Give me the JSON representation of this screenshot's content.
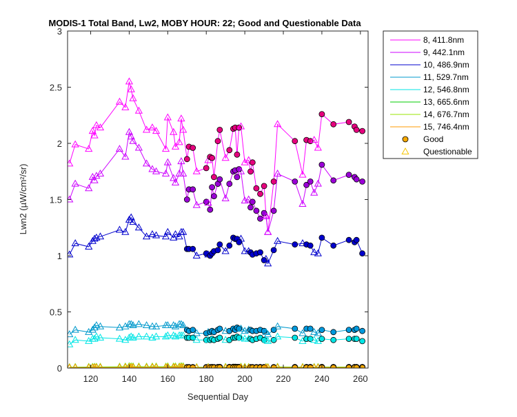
{
  "chart_data": {
    "type": "scatter",
    "title": "MODIS-1 Total Band, Lw2, MOBY HOUR: 22;  Good and Questionable Data",
    "xlabel": "Sequential Day",
    "ylabel": "Lwn2 (µW/cm²/sr)",
    "xlim": [
      108,
      264
    ],
    "ylim": [
      0,
      3
    ],
    "xticks": [
      120,
      140,
      160,
      180,
      200,
      220,
      240,
      260
    ],
    "yticks": [
      0,
      0.5,
      1,
      1.5,
      2,
      2.5,
      3
    ],
    "xtick_labels": [
      "120",
      "140",
      "160",
      "180",
      "200",
      "220",
      "240",
      "260"
    ],
    "ytick_labels": [
      "0",
      "0.5",
      "1",
      "1.5",
      "2",
      "2.5",
      "3"
    ],
    "grid": false,
    "legend_position": "outside-top-right",
    "x": [
      109,
      112,
      119,
      121,
      122,
      123,
      125,
      135,
      138,
      140,
      141,
      142,
      145,
      149,
      152,
      154,
      159,
      160,
      163,
      164,
      166,
      167,
      168,
      170,
      171,
      173,
      175,
      180,
      181,
      182,
      183,
      184,
      186,
      187,
      190,
      192,
      194,
      195,
      196,
      197,
      198,
      200,
      202,
      203,
      204,
      206,
      208,
      210,
      211,
      212,
      215,
      217,
      226,
      230,
      232,
      234,
      236,
      238,
      240,
      246,
      254,
      257,
      258,
      261
    ],
    "quality": [
      "q",
      "q",
      "q",
      "q",
      "q",
      "q",
      "q",
      "q",
      "q",
      "q",
      "q",
      "q",
      "q",
      "q",
      "q",
      "q",
      "q",
      "q",
      "q",
      "q",
      "q",
      "q",
      "q",
      "g",
      "g",
      "g",
      "q",
      "g",
      "q",
      "g",
      "g",
      "g",
      "g",
      "g",
      "q",
      "g",
      "g",
      "g",
      "g",
      "g",
      "q",
      "q",
      "q",
      "g",
      "g",
      "g",
      "g",
      "g",
      "q",
      "q",
      "g",
      "q",
      "g",
      "q",
      "g",
      "g",
      "q",
      "q",
      "g",
      "g",
      "g",
      "g",
      "g",
      "g"
    ],
    "series": [
      {
        "name": "8, 411.8nm",
        "color": "#ff00ff",
        "marker_color": "#e6007e",
        "values": [
          1.82,
          1.99,
          1.95,
          2.11,
          2.07,
          2.16,
          2.14,
          2.37,
          2.32,
          2.55,
          2.48,
          2.4,
          2.29,
          2.12,
          2.14,
          2.11,
          1.95,
          2.23,
          2.1,
          1.97,
          2.01,
          2.22,
          2.12,
          1.86,
          1.97,
          1.96,
          1.75,
          1.78,
          1.85,
          1.88,
          1.87,
          1.7,
          2.02,
          2.12,
          1.87,
          1.94,
          2.13,
          2.14,
          1.9,
          2.14,
          2.15,
          1.83,
          1.85,
          1.75,
          1.83,
          1.6,
          1.55,
          1.62,
          1.36,
          1.21,
          1.66,
          2.17,
          2.02,
          1.72,
          2.03,
          2.02,
          2.03,
          1.96,
          2.26,
          2.17,
          2.19,
          2.15,
          2.12,
          2.11
        ]
      },
      {
        "name": "9, 442.1nm",
        "color": "#cc00ff",
        "marker_color": "#9a00d6",
        "values": [
          1.5,
          1.64,
          1.6,
          1.7,
          1.67,
          1.71,
          1.73,
          1.95,
          1.88,
          2.1,
          2.06,
          2.02,
          1.96,
          1.82,
          1.77,
          1.75,
          1.73,
          1.83,
          1.69,
          1.65,
          1.73,
          1.84,
          1.73,
          1.5,
          1.59,
          1.59,
          1.45,
          1.48,
          1.47,
          1.41,
          1.61,
          1.53,
          1.64,
          1.68,
          1.51,
          1.64,
          1.75,
          1.76,
          1.7,
          1.77,
          1.75,
          1.49,
          1.5,
          1.43,
          1.48,
          1.4,
          1.33,
          1.38,
          1.35,
          1.21,
          1.4,
          1.73,
          1.66,
          1.46,
          1.63,
          1.66,
          1.56,
          1.64,
          1.81,
          1.67,
          1.72,
          1.7,
          1.68,
          1.66
        ]
      },
      {
        "name": "10, 486.9nm",
        "color": "#0000cc",
        "marker_color": "#0000cc",
        "values": [
          1.01,
          1.11,
          1.08,
          1.13,
          1.15,
          1.16,
          1.17,
          1.23,
          1.21,
          1.32,
          1.34,
          1.3,
          1.25,
          1.17,
          1.19,
          1.18,
          1.17,
          1.21,
          1.16,
          1.19,
          1.17,
          1.21,
          1.21,
          1.06,
          1.06,
          1.06,
          1.0,
          1.02,
          1.01,
          1.0,
          1.02,
          1.04,
          1.05,
          1.1,
          1.04,
          1.09,
          1.16,
          1.15,
          1.15,
          1.12,
          1.15,
          1.04,
          1.04,
          1.03,
          1.01,
          1.02,
          1.03,
          0.96,
          0.97,
          0.93,
          1.05,
          1.13,
          1.1,
          1.11,
          1.1,
          1.09,
          1.03,
          1.02,
          1.16,
          1.09,
          1.14,
          1.12,
          1.14,
          1.02
        ]
      },
      {
        "name": "11, 529.7nm",
        "color": "#0099cc",
        "marker_color": "#0099dd",
        "values": [
          0.3,
          0.34,
          0.32,
          0.34,
          0.36,
          0.38,
          0.37,
          0.36,
          0.37,
          0.39,
          0.39,
          0.38,
          0.39,
          0.38,
          0.37,
          0.37,
          0.38,
          0.38,
          0.38,
          0.37,
          0.39,
          0.39,
          0.38,
          0.34,
          0.33,
          0.34,
          0.31,
          0.31,
          0.32,
          0.32,
          0.33,
          0.32,
          0.34,
          0.35,
          0.33,
          0.33,
          0.35,
          0.34,
          0.36,
          0.35,
          0.35,
          0.33,
          0.34,
          0.34,
          0.33,
          0.33,
          0.34,
          0.33,
          0.32,
          0.3,
          0.34,
          0.37,
          0.35,
          0.31,
          0.35,
          0.35,
          0.32,
          0.31,
          0.34,
          0.32,
          0.34,
          0.34,
          0.35,
          0.33
        ]
      },
      {
        "name": "12, 546.8nm",
        "color": "#00e5e5",
        "marker_color": "#00e5e5",
        "values": [
          0.21,
          0.25,
          0.24,
          0.26,
          0.26,
          0.28,
          0.27,
          0.26,
          0.25,
          0.27,
          0.28,
          0.27,
          0.28,
          0.28,
          0.27,
          0.28,
          0.28,
          0.29,
          0.29,
          0.28,
          0.29,
          0.29,
          0.29,
          0.27,
          0.27,
          0.27,
          0.25,
          0.25,
          0.25,
          0.25,
          0.26,
          0.25,
          0.26,
          0.27,
          0.25,
          0.25,
          0.27,
          0.27,
          0.28,
          0.27,
          0.27,
          0.26,
          0.26,
          0.26,
          0.25,
          0.26,
          0.27,
          0.25,
          0.25,
          0.24,
          0.25,
          0.28,
          0.27,
          0.24,
          0.26,
          0.26,
          0.25,
          0.24,
          0.26,
          0.25,
          0.26,
          0.26,
          0.26,
          0.24
        ]
      },
      {
        "name": "13, 665.6nm",
        "color": "#00cc00",
        "marker_color": "#20c020",
        "values": [
          0.007,
          0.008,
          0.009,
          0.009,
          0.01,
          0.01,
          0.01,
          0.011,
          0.012,
          0.015,
          0.014,
          0.013,
          0.012,
          0.011,
          0.012,
          0.012,
          0.011,
          0.014,
          0.012,
          0.013,
          0.012,
          0.015,
          0.014,
          0.008,
          0.008,
          0.008,
          0.007,
          0.008,
          0.008,
          0.008,
          0.009,
          0.008,
          0.009,
          0.01,
          0.009,
          0.01,
          0.011,
          0.011,
          0.01,
          0.01,
          0.01,
          0.009,
          0.008,
          0.008,
          0.008,
          0.008,
          0.009,
          0.008,
          0.008,
          0.007,
          0.008,
          0.01,
          0.009,
          0.008,
          0.009,
          0.009,
          0.008,
          0.008,
          0.01,
          0.009,
          0.009,
          0.009,
          0.009,
          0.009
        ]
      },
      {
        "name": "14, 676.7nm",
        "color": "#99e500",
        "marker_color": "#99e500",
        "values": [
          0.006,
          0.007,
          0.008,
          0.008,
          0.009,
          0.009,
          0.009,
          0.01,
          0.011,
          0.013,
          0.013,
          0.012,
          0.011,
          0.01,
          0.011,
          0.011,
          0.01,
          0.013,
          0.011,
          0.012,
          0.011,
          0.014,
          0.013,
          0.007,
          0.007,
          0.007,
          0.006,
          0.007,
          0.007,
          0.007,
          0.008,
          0.007,
          0.008,
          0.009,
          0.008,
          0.009,
          0.01,
          0.01,
          0.009,
          0.009,
          0.009,
          0.008,
          0.007,
          0.007,
          0.007,
          0.007,
          0.008,
          0.007,
          0.007,
          0.006,
          0.007,
          0.009,
          0.008,
          0.007,
          0.008,
          0.008,
          0.007,
          0.007,
          0.009,
          0.008,
          0.008,
          0.008,
          0.008,
          0.008
        ]
      },
      {
        "name": "15, 746.4nm",
        "color": "#ff9900",
        "marker_color": "#f5a800",
        "values": [
          0.003,
          0.004,
          0.004,
          0.004,
          0.005,
          0.005,
          0.005,
          0.005,
          0.006,
          0.007,
          0.007,
          0.006,
          0.006,
          0.005,
          0.006,
          0.006,
          0.005,
          0.007,
          0.006,
          0.006,
          0.006,
          0.007,
          0.007,
          0.004,
          0.004,
          0.004,
          0.003,
          0.004,
          0.004,
          0.004,
          0.004,
          0.004,
          0.004,
          0.005,
          0.004,
          0.005,
          0.005,
          0.005,
          0.005,
          0.005,
          0.005,
          0.004,
          0.004,
          0.004,
          0.004,
          0.004,
          0.004,
          0.004,
          0.004,
          0.003,
          0.004,
          0.005,
          0.004,
          0.004,
          0.004,
          0.004,
          0.004,
          0.004,
          0.005,
          0.004,
          0.004,
          0.004,
          0.004,
          0.004
        ]
      }
    ],
    "marker_legend": [
      {
        "name": "Good",
        "marker": "circle",
        "color": "#f5a800"
      },
      {
        "name": "Questionable",
        "marker": "triangle",
        "color": "#f5c400"
      }
    ]
  }
}
